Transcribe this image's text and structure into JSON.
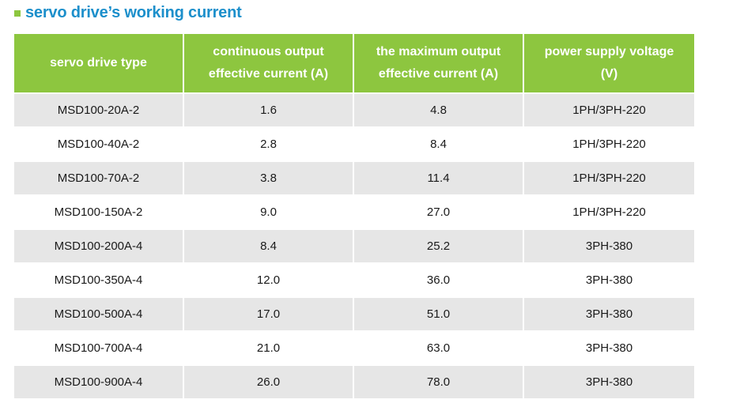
{
  "title": {
    "text": "servo drive’s working current",
    "color": "#1c8fcb",
    "marker_color": "#8dc63f"
  },
  "table": {
    "header_color": "#8dc63f",
    "headers": [
      [
        "servo drive type"
      ],
      [
        "continuous output",
        "effective current (A)"
      ],
      [
        "the maximum output",
        "effective current (A)"
      ],
      [
        "power supply voltage",
        "(V)"
      ]
    ],
    "rows": [
      [
        "MSD100-20A-2",
        "1.6",
        "4.8",
        "1PH/3PH-220"
      ],
      [
        "MSD100-40A-2",
        "2.8",
        "8.4",
        "1PH/3PH-220"
      ],
      [
        "MSD100-70A-2",
        "3.8",
        "11.4",
        "1PH/3PH-220"
      ],
      [
        "MSD100-150A-2",
        "9.0",
        "27.0",
        "1PH/3PH-220"
      ],
      [
        "MSD100-200A-4",
        "8.4",
        "25.2",
        "3PH-380"
      ],
      [
        "MSD100-350A-4",
        "12.0",
        "36.0",
        "3PH-380"
      ],
      [
        "MSD100-500A-4",
        "17.0",
        "51.0",
        "3PH-380"
      ],
      [
        "MSD100-700A-4",
        "21.0",
        "63.0",
        "3PH-380"
      ],
      [
        "MSD100-900A-4",
        "26.0",
        "78.0",
        "3PH-380"
      ]
    ]
  }
}
